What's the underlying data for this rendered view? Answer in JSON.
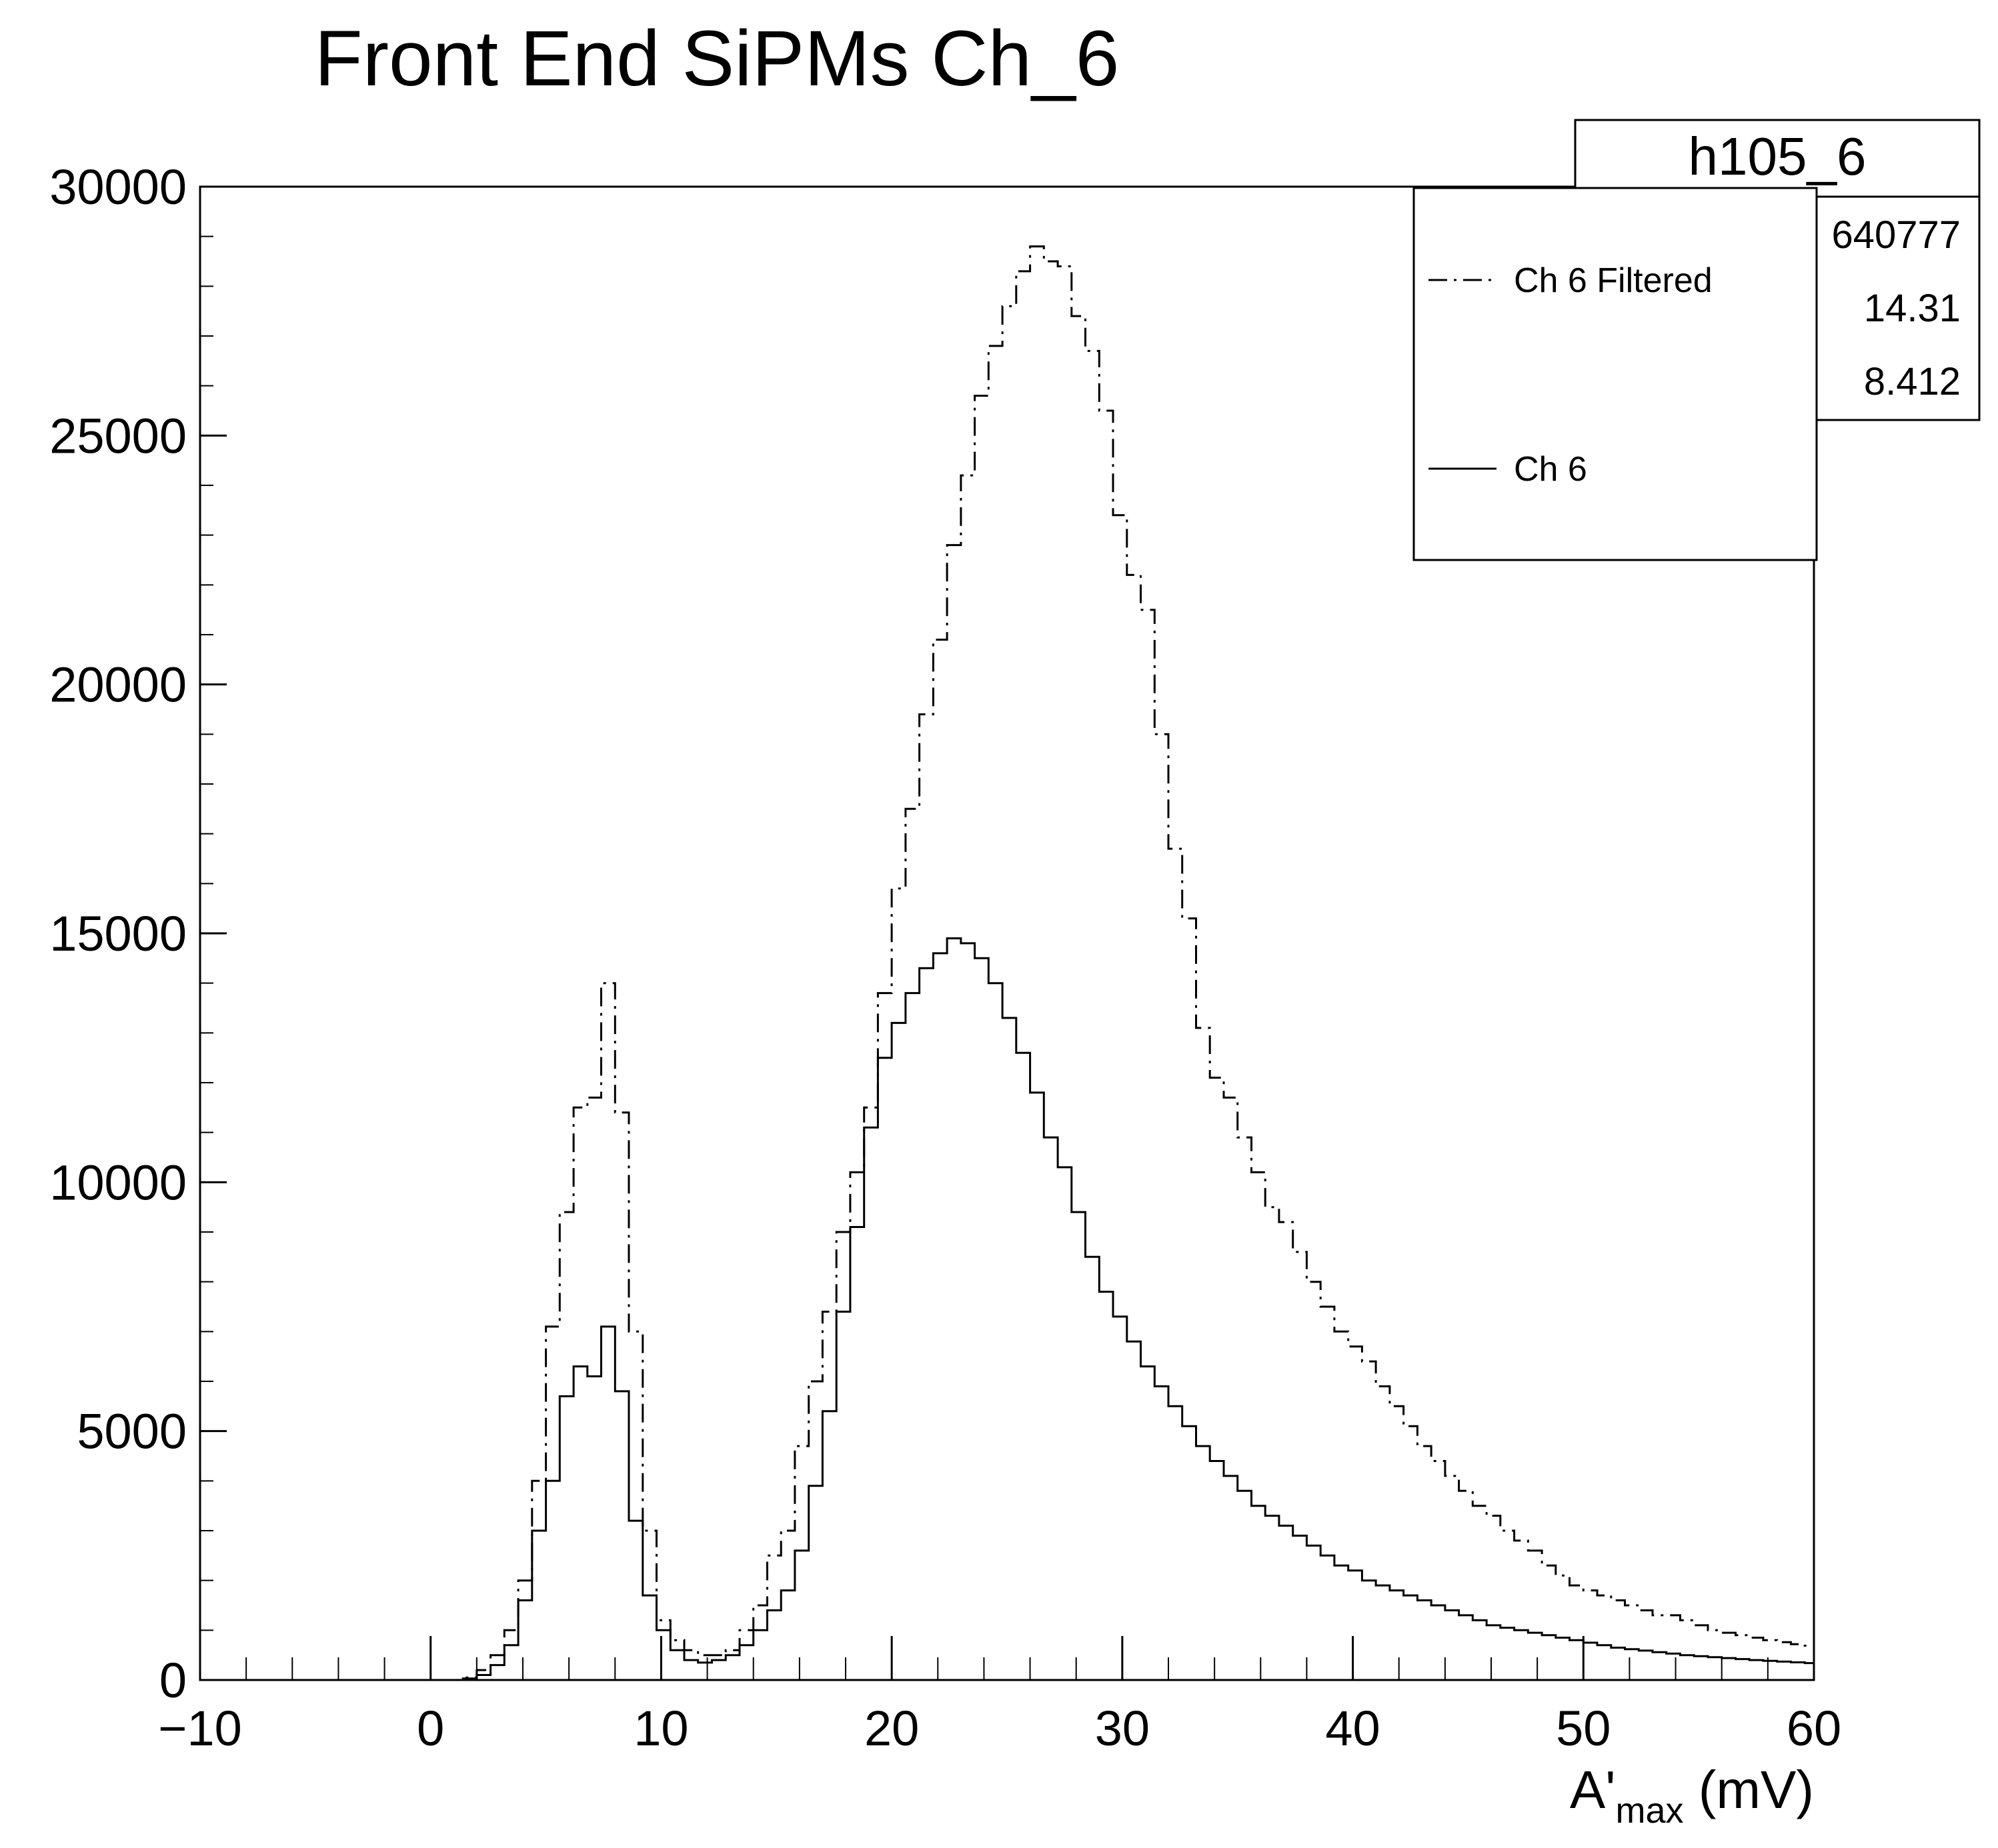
{
  "chart_data": {
    "type": "histogram",
    "title": "Front End SiPMs Ch_6",
    "xlabel": {
      "main": "A'",
      "sub": "max",
      "unit": " (mV)"
    },
    "ylabel": "",
    "xlim": [
      -10,
      60
    ],
    "ylim": [
      0,
      30000
    ],
    "x_ticks": [
      -10,
      0,
      10,
      20,
      30,
      40,
      50,
      60
    ],
    "x_tick_labels": [
      "−10",
      "0",
      "10",
      "20",
      "30",
      "40",
      "50",
      "60"
    ],
    "y_ticks": [
      0,
      5000,
      10000,
      15000,
      20000,
      25000,
      30000
    ],
    "y_tick_labels": [
      "0",
      "5000",
      "10000",
      "15000",
      "20000",
      "25000",
      "30000"
    ],
    "grid": false,
    "legend_position": "top-right",
    "bin_edges_start": -10,
    "bin_width": 0.6,
    "series": [
      {
        "name": "Ch 6 Filtered",
        "style": "dash-dot",
        "color": "#000000",
        "values": [
          0,
          0,
          0,
          0,
          0,
          0,
          0,
          0,
          0,
          0,
          0,
          0,
          0,
          0,
          0,
          0,
          0,
          0,
          0,
          50,
          200,
          500,
          1000,
          2000,
          4000,
          7100,
          9400,
          11500,
          11700,
          14000,
          11400,
          7000,
          3000,
          1200,
          800,
          600,
          500,
          500,
          600,
          1000,
          1500,
          2500,
          3000,
          4700,
          6000,
          7400,
          9000,
          10200,
          11500,
          13800,
          15900,
          17500,
          19400,
          20900,
          22800,
          24200,
          25800,
          26800,
          27600,
          28300,
          28800,
          28500,
          28400,
          27400,
          26700,
          25500,
          23400,
          22200,
          21500,
          19000,
          16700,
          15300,
          13100,
          12100,
          11700,
          10900,
          10200,
          9500,
          9200,
          8600,
          8000,
          7500,
          7000,
          6700,
          6400,
          5900,
          5500,
          5100,
          4700,
          4400,
          4100,
          3800,
          3500,
          3300,
          3000,
          2800,
          2600,
          2300,
          2100,
          1900,
          1800,
          1700,
          1600,
          1500,
          1400,
          1300,
          1300,
          1200,
          1100,
          1000,
          950,
          900,
          850,
          800,
          760,
          720,
          690,
          650,
          620,
          600,
          580,
          550,
          520,
          500,
          480,
          460,
          440,
          420,
          400,
          390,
          370,
          350,
          340,
          330,
          320,
          310,
          300,
          290,
          280,
          270,
          260,
          255,
          250,
          245,
          240,
          235,
          230,
          225,
          220,
          215,
          210,
          205,
          200,
          200,
          195,
          190,
          185,
          180,
          175,
          170,
          165,
          160,
          155,
          150,
          150,
          145,
          140,
          135,
          130,
          128,
          125,
          123,
          120,
          118,
          115,
          113,
          110,
          108,
          105,
          103,
          100,
          100,
          100,
          100,
          100
        ]
      },
      {
        "name": "Ch 6",
        "style": "solid",
        "color": "#000000",
        "values": [
          0,
          0,
          0,
          0,
          0,
          0,
          0,
          0,
          0,
          0,
          0,
          0,
          0,
          0,
          0,
          0,
          0,
          0,
          0,
          30,
          100,
          300,
          700,
          1600,
          3000,
          4000,
          5700,
          6300,
          6100,
          7100,
          5800,
          3200,
          1700,
          1000,
          600,
          400,
          350,
          400,
          500,
          700,
          1000,
          1400,
          1800,
          2600,
          3900,
          5400,
          7400,
          9100,
          11100,
          12500,
          13200,
          13800,
          14300,
          14600,
          14900,
          14800,
          14500,
          14000,
          13300,
          12600,
          11800,
          10900,
          10300,
          9400,
          8500,
          7800,
          7300,
          6800,
          6300,
          5900,
          5500,
          5100,
          4700,
          4400,
          4100,
          3800,
          3500,
          3300,
          3100,
          2900,
          2700,
          2500,
          2300,
          2200,
          2000,
          1900,
          1800,
          1700,
          1600,
          1500,
          1400,
          1300,
          1200,
          1100,
          1050,
          1000,
          950,
          900,
          850,
          800,
          750,
          700,
          650,
          620,
          590,
          560,
          530,
          500,
          480,
          460,
          440,
          420,
          400,
          385,
          370,
          355,
          340,
          330,
          320,
          310,
          300,
          290,
          280,
          270,
          260,
          250,
          245,
          240,
          235,
          230,
          225,
          220,
          215,
          210,
          205,
          200,
          195,
          190,
          185,
          180,
          175,
          170,
          165,
          160,
          155,
          150,
          148,
          145,
          142,
          140,
          137,
          135,
          132,
          130,
          127,
          125,
          122,
          120,
          117,
          115,
          112,
          110,
          107,
          105,
          102,
          100,
          98,
          96,
          94,
          92,
          90,
          88,
          86,
          84,
          82,
          80,
          78,
          76,
          74,
          72,
          70,
          68,
          66,
          64,
          62,
          60,
          58
        ]
      }
    ]
  },
  "stats_box": {
    "name": "h105_6",
    "entries_value": "640777",
    "mean_value": "14.31",
    "stddev_value": "8.412"
  },
  "legend": {
    "items": [
      {
        "label": "Ch 6 Filtered",
        "style": "dash-dot"
      },
      {
        "label": "Ch 6",
        "style": "solid"
      }
    ]
  }
}
